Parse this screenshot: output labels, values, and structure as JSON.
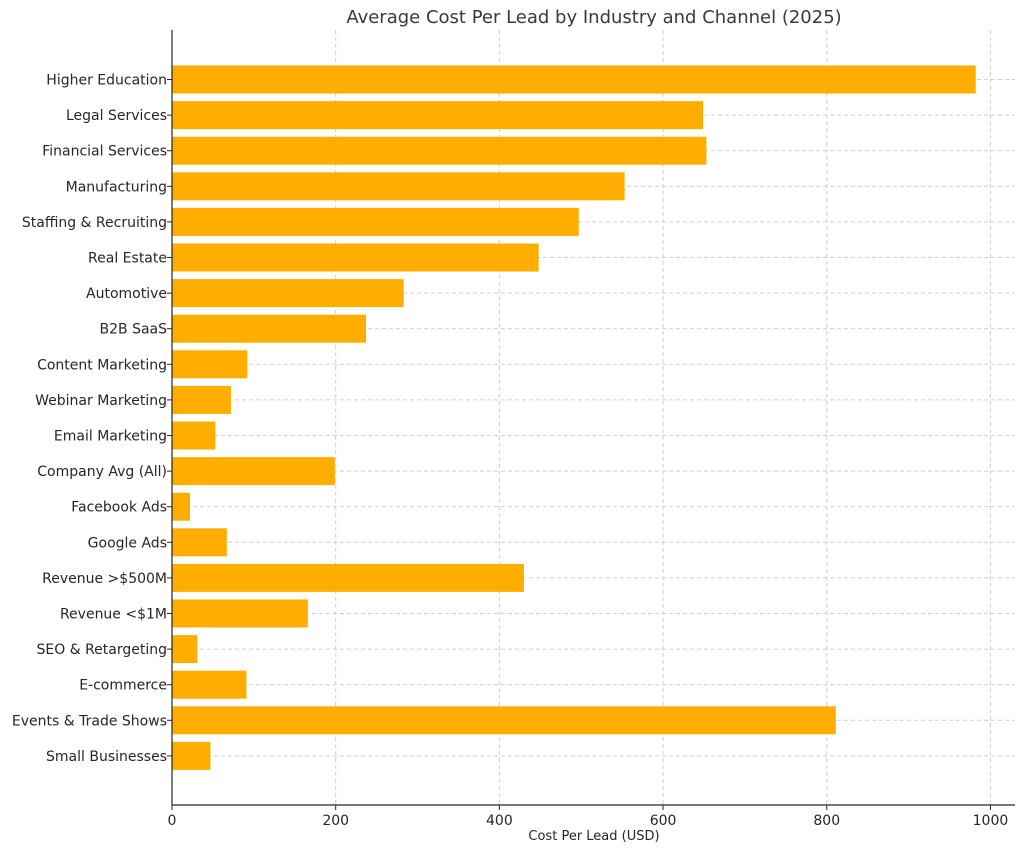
{
  "chart_data": {
    "type": "bar",
    "orientation": "horizontal",
    "title": "Average Cost Per Lead by Industry and Channel (2025)",
    "xlabel": "Cost Per Lead (USD)",
    "ylabel": "",
    "xlim": [
      0,
      1030
    ],
    "xticks": [
      0,
      200,
      400,
      600,
      800,
      1000
    ],
    "grid": true,
    "bar_color": "#FFAE00",
    "categories": [
      "Higher Education",
      "Legal Services",
      "Financial Services",
      "Manufacturing",
      "Staffing & Recruiting",
      "Real Estate",
      "Automotive",
      "B2B SaaS",
      "Content Marketing",
      "Webinar Marketing",
      "Email Marketing",
      "Company Avg (All)",
      "Facebook Ads",
      "Google Ads",
      "Revenue >$500M",
      "Revenue <$1M",
      "SEO & Retargeting",
      "E-commerce",
      "Events & Trade Shows",
      "Small Businesses"
    ],
    "values": [
      982,
      649,
      653,
      553,
      497,
      448,
      283,
      237,
      92,
      72,
      53,
      199,
      22,
      67,
      430,
      166,
      31,
      91,
      811,
      47
    ]
  }
}
